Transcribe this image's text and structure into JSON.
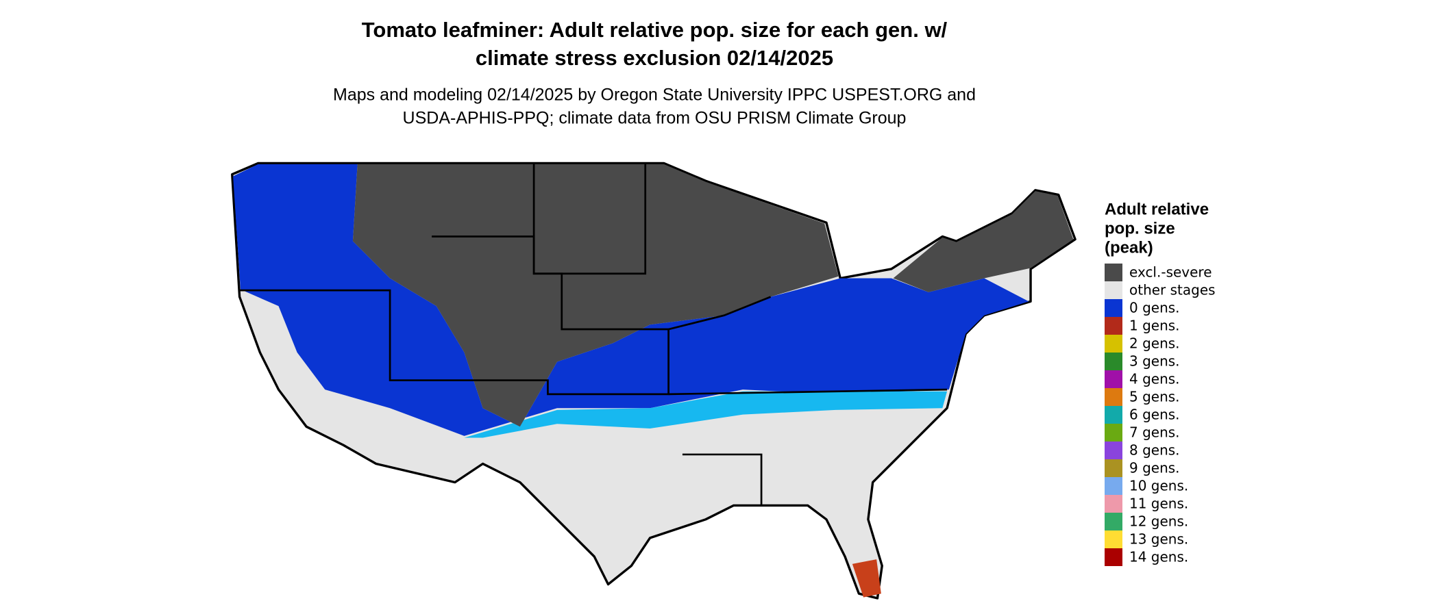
{
  "header": {
    "title_lines": [
      "Tomato leafminer: Adult relative pop. size for each gen. w/",
      "climate stress exclusion 02/14/2025"
    ],
    "subtitle_lines": [
      "Maps and modeling 02/14/2025 by Oregon State University IPPC USPEST.ORG and",
      "USDA-APHIS-PPQ; climate data from OSU PRISM Climate Group"
    ]
  },
  "legend": {
    "title_lines": [
      "Adult relative",
      "pop. size",
      "(peak)"
    ],
    "items": [
      {
        "label": "excl.-severe",
        "color": "#4a4a4a"
      },
      {
        "label": "other stages",
        "color": "#e5e5e5"
      },
      {
        "label": "0 gens.",
        "color": "#0a35d2"
      },
      {
        "label": "1 gens.",
        "color": "#b22a1a"
      },
      {
        "label": "2 gens.",
        "color": "#d6c100"
      },
      {
        "label": "3 gens.",
        "color": "#2a8a2a"
      },
      {
        "label": "4 gens.",
        "color": "#a010a8"
      },
      {
        "label": "5 gens.",
        "color": "#dd7a10"
      },
      {
        "label": "6 gens.",
        "color": "#12aaaa"
      },
      {
        "label": "7 gens.",
        "color": "#6aaa12"
      },
      {
        "label": "8 gens.",
        "color": "#8a44dd"
      },
      {
        "label": "9 gens.",
        "color": "#aa9222"
      },
      {
        "label": "10 gens.",
        "color": "#77aaee"
      },
      {
        "label": "11 gens.",
        "color": "#ee99aa"
      },
      {
        "label": "12 gens.",
        "color": "#33aa66"
      },
      {
        "label": "13 gens.",
        "color": "#ffdd33"
      },
      {
        "label": "14 gens.",
        "color": "#aa0000"
      }
    ]
  }
}
